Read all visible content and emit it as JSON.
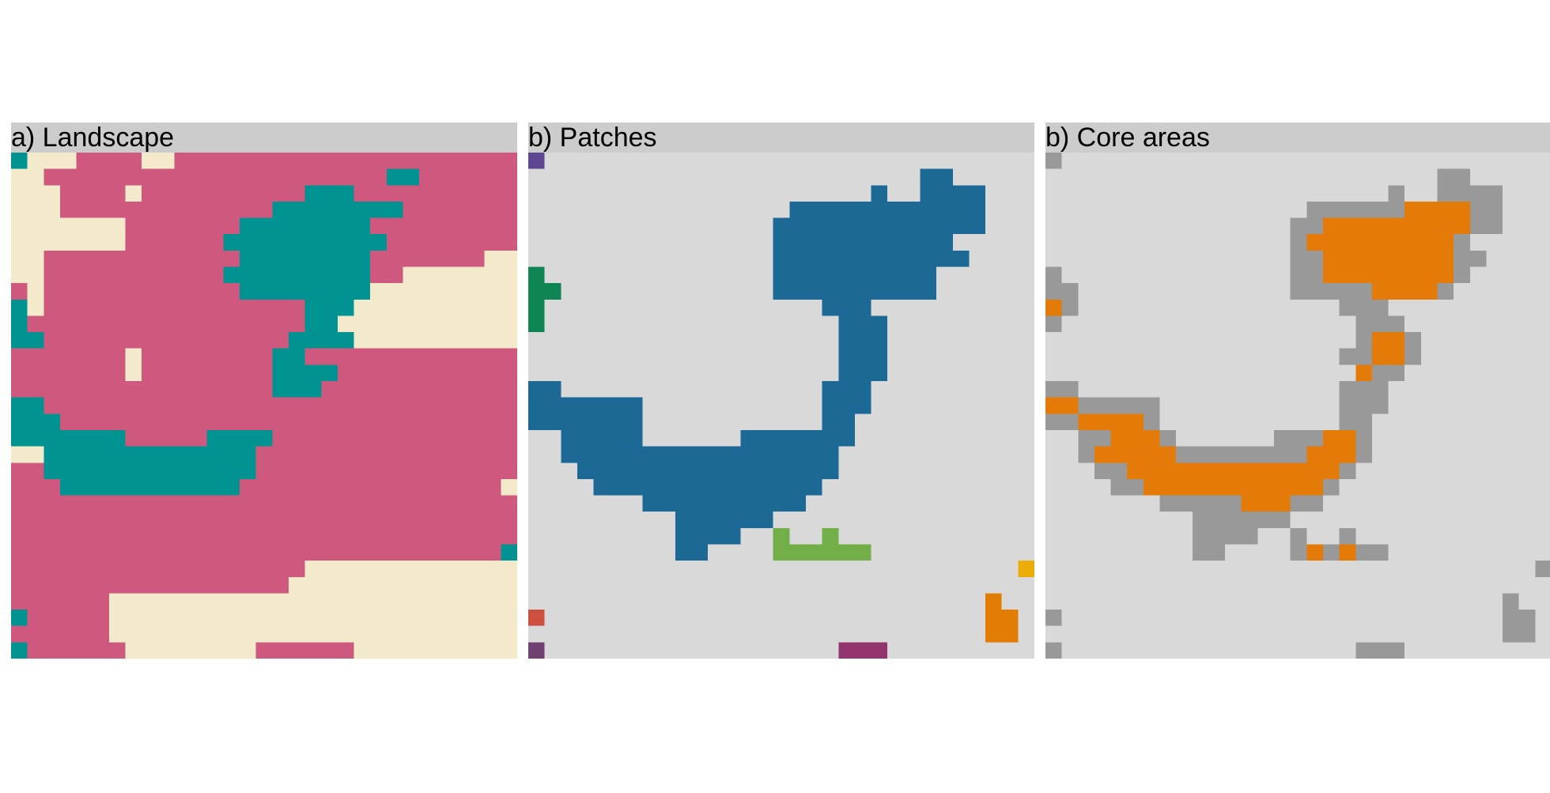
{
  "panels": [
    {
      "title": "a) Landscape",
      "background": "#f2eaca",
      "palette": {
        "1": "#f2eaca",
        "2": "#cf597e",
        "3": "#009392"
      },
      "rows": [
        "3111222211222222222222222222222",
        "1122222222222222222222233222222",
        "1112222122222222223332222222222",
        "1112222222222222333333332222222",
        "1111111222222233333333222222222",
        "1111111222222333333333322222222",
        "1122222222222233333333222222211",
        "1122222222222333333333221111111",
        "2122222222222233333333111111111",
        "3122222222222222223331111111111",
        "3222222222222222223311111111111",
        "3322222222222222233331111111111",
        "2222222122222222332222222222222",
        "2222222122222222333322222222222",
        "2222222222222222333222222222222",
        "3322222222222222222222222222222",
        "3332222222222222222222222222222",
        "3333333222223333222222222222222",
        "1133333333333332222222222222222",
        "2233333333333332222222222222222",
        "2223333333333322222222222222221",
        "2222222222222222222222222222222",
        "2222222222222222222222222222222",
        "2222222222222222222222222222222",
        "2222222222222222222222222222223",
        "2222222222222222221111111111111",
        "2222222222222222211111111111111",
        "2222221111111111111111111111111",
        "3222221111111111111111111111111",
        "2222221111111111111111111111111",
        "3222222111111112222221111111111"
      ]
    },
    {
      "title": "b) Patches",
      "background": "#d9d9d9",
      "palette": {
        "1": "#5f4690",
        "2": "#1d6996",
        "3": "#38a6a5",
        "4": "#0f8554",
        "5": "#73af48",
        "6": "#edad08",
        "7": "#e17c05",
        "8": "#cc503e",
        "9": "#94346e",
        "a": "#6f4070"
      },
      "rows": [
        "1000000000000000000000000000000",
        "0000000000000000000000002200000",
        "0000000000000000000002002222000",
        "0000000000000000222222222222000",
        "0000000000000002222222222222000",
        "0000000000000002222222222200000",
        "0000000000000002222222222220000",
        "4000000000000002222222222000000",
        "4400000000000002222222222000000",
        "4000000000000000002220000000000",
        "4000000000000000000222000000000",
        "0000000000000000000222000000000",
        "0000000000000000000222000000000",
        "0000000000000000000222000000000",
        "2200000000000000002220000000000",
        "2222222000000000002220000000000",
        "2222222000000000002200000000000",
        "0022222000000222222200000000000",
        "0022222222222222222000000000000",
        "0002222222222222222000000000000",
        "0000222222222222220000000000000",
        "0000000222222222200000000000000",
        "0000000002222220000000000000000",
        "0000000002222005005000000000000",
        "0000000002200005555550000000000",
        "0000000000000000000000000000006",
        "0000000000000000000000000000000",
        "0000000000000000000000000000700",
        "8000000000000000000000000000770",
        "0000000000000000000000000000770",
        "a000000000000000000999000000000"
      ]
    },
    {
      "title": "b) Core areas",
      "background": "#d9d9d9",
      "palette": {
        "1": "#999999",
        "2": "#e47a08"
      },
      "rows": [
        "1000000000000000000000000000000",
        "0000000000000000000000001100000",
        "0000000000000000000001001111000",
        "0000000000000000111111222211000",
        "0000000000000001122222222211000",
        "0000000000000001222222222100000",
        "0000000000000001122222222110000",
        "1000000000000001122222222100000",
        "1100000000000001111122221000000",
        "2100000000000000001110000000000",
        "1000000000000000000111000000000",
        "0000000000000000000122100000000",
        "0000000000000000001122100000000",
        "0000000000000000000211000000000",
        "1100000000000000001110000000000",
        "2211111000000000001110000000000",
        "1122221000000000001100000000000",
        "0011222100000011122100000000000",
        "0012222211111111222100000000000",
        "0001122222222222221000000000000",
        "0000112222222222210000000000000",
        "0000000111112221100000000000000",
        "0000000001111110000000000000000",
        "0000000001111001001000000000000",
        "0000000001100001212110000000000",
        "0000000000000000000000000000001",
        "0000000000000000000000000000000",
        "0000000000000000000000000000100",
        "1000000000000000000000000000110",
        "0000000000000000000000000000110",
        "1000000000000000000111000000000"
      ]
    }
  ]
}
